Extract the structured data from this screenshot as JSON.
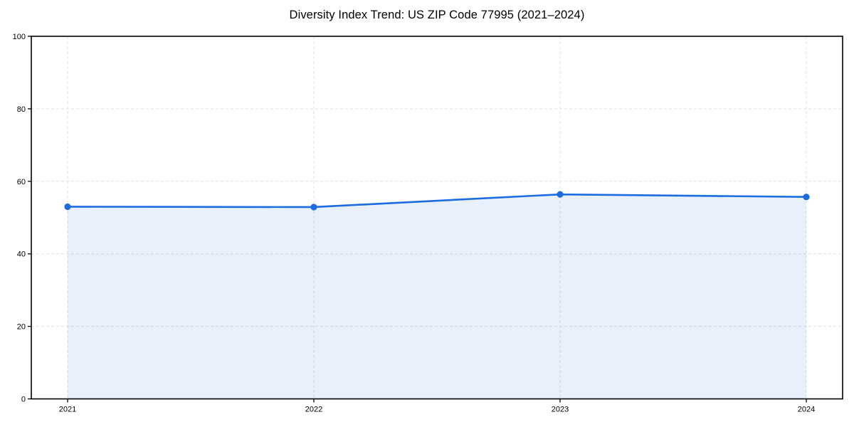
{
  "chart_data": {
    "type": "line",
    "title": "Diversity Index Trend: US ZIP Code 77995 (2021–2024)",
    "categories": [
      "2021",
      "2022",
      "2023",
      "2024"
    ],
    "series": [
      {
        "name": "Diversity Index",
        "values": [
          53.0,
          52.9,
          56.4,
          55.7
        ]
      }
    ],
    "xlabel": "",
    "ylabel": "",
    "ylim": [
      0,
      100
    ],
    "yticks": [
      0,
      20,
      40,
      60,
      80,
      100
    ],
    "grid": true,
    "grid_style": "dashed",
    "legend": false,
    "area_fill": true,
    "markers": true
  },
  "colors": {
    "line": "#1b6ce0",
    "marker": "#1b6ce0",
    "area_fill": "#1b6ce0",
    "area_fill_opacity": 0.1,
    "grid": "#e0e0e0",
    "spine": "#000000",
    "tick_text": "#000000",
    "background": "#ffffff"
  }
}
